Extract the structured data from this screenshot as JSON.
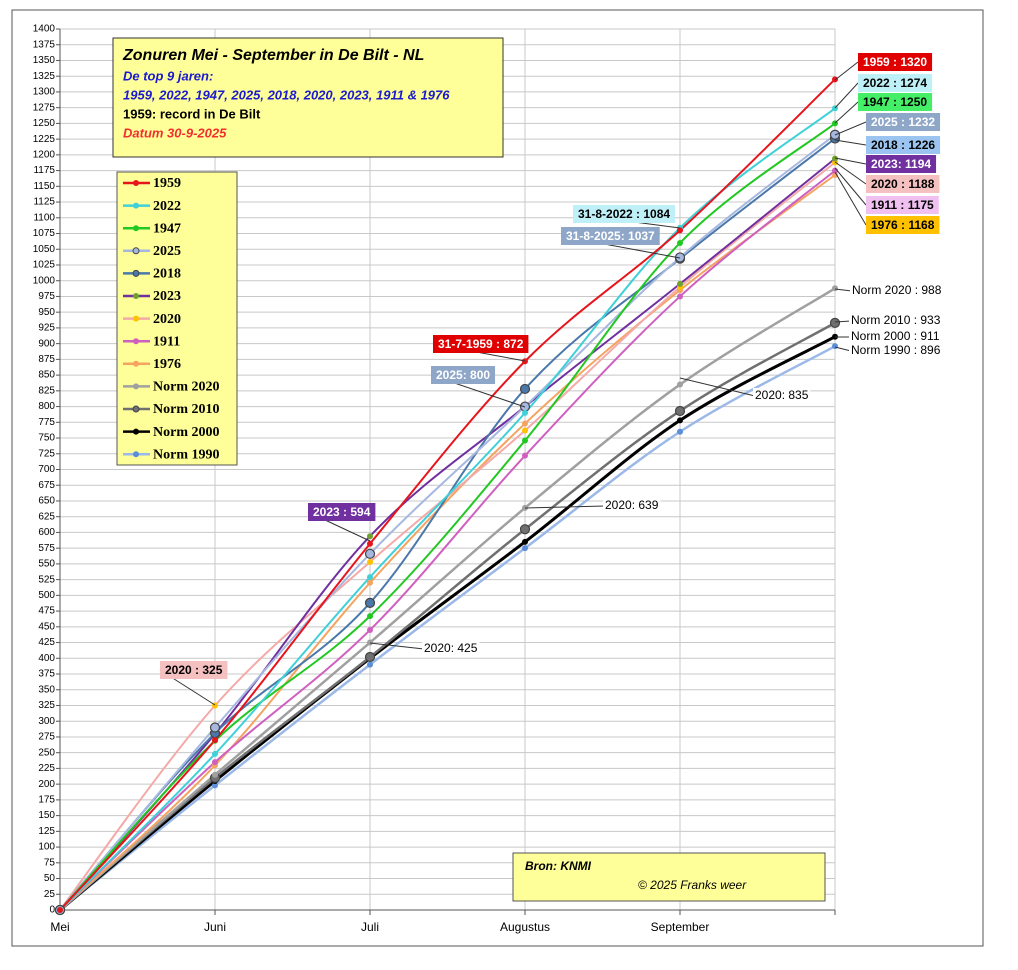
{
  "chart_data": {
    "type": "line",
    "title": "Zonuren Mei - September in De Bilt - NL",
    "subtitle_lines": [
      {
        "text": "De top 9 jaren:",
        "color": "#1a1ad0"
      },
      {
        "text": "1959, 2022, 1947, 2025, 2018, 2020, 2023, 1911 & 1976",
        "color": "#1a1ad0"
      },
      {
        "text": "1959: record in De Bilt",
        "color": "#000000"
      },
      {
        "text": "Datum 30-9-2025",
        "color": "#f03030"
      }
    ],
    "source": "Bron: KNMI",
    "credit": "© 2025 Franks weer",
    "categories": [
      "Mei",
      "Juni",
      "Juli",
      "Augustus",
      "September",
      null
    ],
    "ylim": [
      0,
      1400
    ],
    "yticks": [
      0,
      25,
      50,
      75,
      100,
      125,
      150,
      175,
      200,
      225,
      250,
      275,
      300,
      325,
      350,
      375,
      400,
      425,
      450,
      475,
      500,
      525,
      550,
      575,
      600,
      625,
      650,
      675,
      700,
      725,
      750,
      775,
      800,
      825,
      850,
      875,
      900,
      925,
      950,
      975,
      1000,
      1025,
      1050,
      1075,
      1100,
      1125,
      1150,
      1175,
      1200,
      1225,
      1250,
      1275,
      1300,
      1325,
      1350,
      1375,
      1400
    ],
    "grid": true,
    "series": [
      {
        "name": "1959",
        "color": "#e8141c",
        "values": [
          0,
          270,
          582,
          872,
          1080,
          1320
        ]
      },
      {
        "name": "2022",
        "color": "#3fd0d8",
        "values": [
          0,
          248,
          529,
          790,
          1084,
          1274
        ]
      },
      {
        "name": "1947",
        "color": "#22c822",
        "values": [
          0,
          269,
          467,
          746,
          1060,
          1250
        ]
      },
      {
        "name": "2025",
        "color": "#a6b8e0",
        "marker_color": "#a6b8e0",
        "values": [
          0,
          290,
          566,
          800,
          1037,
          1232
        ]
      },
      {
        "name": "2018",
        "color": "#4a78aa",
        "values": [
          0,
          281,
          488,
          828,
          1035,
          1226
        ]
      },
      {
        "name": "2023",
        "color": "#7030a0",
        "marker_color": "#70a030",
        "values": [
          0,
          280,
          594,
          800,
          995,
          1194
        ]
      },
      {
        "name": "2020",
        "color": "#f4aaa8",
        "marker_color": "#ffc000",
        "values": [
          0,
          325,
          553,
          762,
          990,
          1188
        ]
      },
      {
        "name": "1911",
        "color": "#d060c0",
        "values": [
          0,
          235,
          445,
          722,
          975,
          1175
        ]
      },
      {
        "name": "1976",
        "color": "#f4a460",
        "values": [
          0,
          230,
          520,
          773,
          985,
          1168
        ]
      },
      {
        "name": "Norm 2020",
        "color": "#a0a0a0",
        "values": [
          0,
          215,
          425,
          639,
          835,
          988
        ]
      },
      {
        "name": "Norm 2010",
        "color": "#707070",
        "values": [
          0,
          210,
          402,
          605,
          793,
          933
        ]
      },
      {
        "name": "Norm 2000",
        "color": "#000000",
        "values": [
          0,
          205,
          400,
          585,
          778,
          911
        ]
      },
      {
        "name": "Norm 1990",
        "color": "#9ab8e8",
        "marker_color": "#5b8ed8",
        "values": [
          0,
          198,
          390,
          575,
          760,
          896
        ]
      }
    ],
    "annotations": [
      {
        "text": "1959 : 1320",
        "background": "#e00000",
        "color": "#ffffff"
      },
      {
        "text": "2022 : 1274",
        "background": "#bff0f8",
        "color": "#000000"
      },
      {
        "text": "1947 : 1250",
        "background": "#44ee66",
        "color": "#000000"
      },
      {
        "text": "2025 : 1232",
        "background": "#8ea6c8",
        "color": "#ffffff"
      },
      {
        "text": "2018 : 1226",
        "background": "#9cc4f0",
        "color": "#000000"
      },
      {
        "text": "2023: 1194",
        "background": "#7030a0",
        "color": "#ffffff"
      },
      {
        "text": "2020 : 1188",
        "background": "#f4c0c0",
        "color": "#000000"
      },
      {
        "text": "1911 : 1175",
        "background": "#f0c0f0",
        "color": "#000000"
      },
      {
        "text": "1976 : 1168",
        "background": "#ffc000",
        "color": "#000000"
      },
      {
        "text": "31-8-2022 : 1084",
        "background": "#bff0f8",
        "color": "#000000"
      },
      {
        "text": "31-8-2025: 1037",
        "background": "#8ea6c8",
        "color": "#ffffff"
      },
      {
        "text": "31-7-1959 : 872",
        "background": "#e00000",
        "color": "#ffffff"
      },
      {
        "text": "2025: 800",
        "background": "#8ea6c8",
        "color": "#ffffff"
      },
      {
        "text": "2023 : 594",
        "background": "#7030a0",
        "color": "#ffffff"
      },
      {
        "text": "2020 : 325",
        "background": "#f4c0c0",
        "color": "#000000"
      },
      {
        "text": "Norm 2020 : 988"
      },
      {
        "text": "Norm 2010 : 933"
      },
      {
        "text": "Norm 2000 : 911"
      },
      {
        "text": "Norm 1990 : 896"
      },
      {
        "text": "2020: 835"
      },
      {
        "text": "2020: 639"
      },
      {
        "text": "2020: 425"
      }
    ]
  }
}
